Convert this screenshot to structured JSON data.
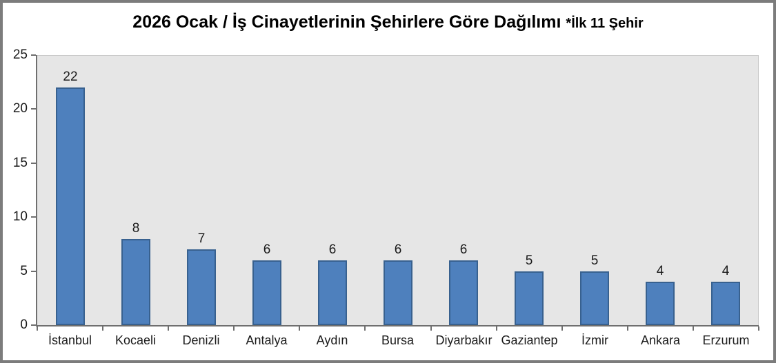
{
  "chart_data": {
    "type": "bar",
    "title": "2026 Ocak / İş Cinayetlerinin Şehirlere Göre Dağılımı *İlk 11 Şehir",
    "title_main": "2026 Ocak / İş Cinayetlerinin Şehirlere Göre Dağılımı",
    "title_suffix": "*İlk 11 Şehir",
    "categories": [
      "İstanbul",
      "Kocaeli",
      "Denizli",
      "Antalya",
      "Aydın",
      "Bursa",
      "Diyarbakır",
      "Gaziantep",
      "İzmir",
      "Ankara",
      "Erzurum"
    ],
    "values": [
      22,
      8,
      7,
      6,
      6,
      6,
      6,
      5,
      5,
      4,
      4
    ],
    "xlabel": "",
    "ylabel": "",
    "ylim": [
      0,
      25
    ],
    "yticks": [
      0,
      5,
      10,
      15,
      20,
      25
    ],
    "grid": false,
    "legend": false,
    "data_labels": true,
    "colors": {
      "bar_fill": "#4e80bd",
      "bar_border": "#38618f",
      "plot_bg": "#e6e6e6",
      "chart_bg": "#ffffff",
      "frame_border": "#7c7c7c",
      "axis_line": "#6f6f6f",
      "text": "#1a1a1a"
    }
  }
}
